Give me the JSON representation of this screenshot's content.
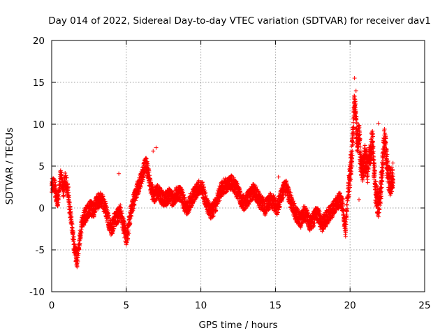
{
  "chart_data": {
    "type": "scatter",
    "title": "Day 014 of 2022, Sidereal Day-to-day VTEC variation (SDTVAR) for receiver dav1",
    "xlabel": "GPS time / hours",
    "ylabel": "SDTVAR / TECUs",
    "xlim": [
      0,
      25
    ],
    "ylim": [
      -10,
      20
    ],
    "xticks": [
      0,
      5,
      10,
      15,
      20,
      25
    ],
    "yticks": [
      -10,
      -5,
      0,
      5,
      10,
      15,
      20
    ],
    "xtick_labels": [
      "0",
      "5",
      "10",
      "15",
      "20",
      "25"
    ],
    "ytick_labels": [
      "-10",
      "-5",
      "0",
      "5",
      "10",
      "15",
      "20"
    ],
    "grid": true,
    "marker": "plus",
    "color": "#ff0000",
    "series": [
      {
        "name": "dav1",
        "trace": [
          [
            0.0,
            2.5
          ],
          [
            0.1,
            3.0
          ],
          [
            0.2,
            2.6
          ],
          [
            0.3,
            1.5
          ],
          [
            0.4,
            0.5
          ],
          [
            0.5,
            2.5
          ],
          [
            0.6,
            3.8
          ],
          [
            0.7,
            3.0
          ],
          [
            0.8,
            2.0
          ],
          [
            0.9,
            3.5
          ],
          [
            1.0,
            2.8
          ],
          [
            1.1,
            2.0
          ],
          [
            1.2,
            0.0
          ],
          [
            1.3,
            -1.5
          ],
          [
            1.4,
            -3.0
          ],
          [
            1.5,
            -4.5
          ],
          [
            1.6,
            -5.5
          ],
          [
            1.7,
            -6.2
          ],
          [
            1.8,
            -5.0
          ],
          [
            1.9,
            -3.5
          ],
          [
            2.0,
            -2.0
          ],
          [
            2.2,
            -1.0
          ],
          [
            2.4,
            -0.5
          ],
          [
            2.6,
            0.0
          ],
          [
            2.8,
            -0.3
          ],
          [
            3.0,
            0.5
          ],
          [
            3.2,
            1.0
          ],
          [
            3.4,
            0.8
          ],
          [
            3.6,
            0.0
          ],
          [
            3.8,
            -1.5
          ],
          [
            4.0,
            -2.5
          ],
          [
            4.2,
            -1.5
          ],
          [
            4.4,
            -1.0
          ],
          [
            4.6,
            -0.5
          ],
          [
            4.8,
            -2.0
          ],
          [
            5.0,
            -3.5
          ],
          [
            5.1,
            -3.0
          ],
          [
            5.3,
            -0.5
          ],
          [
            5.5,
            1.0
          ],
          [
            5.7,
            2.0
          ],
          [
            5.9,
            3.0
          ],
          [
            6.1,
            4.0
          ],
          [
            6.3,
            5.5
          ],
          [
            6.5,
            4.0
          ],
          [
            6.7,
            2.0
          ],
          [
            6.9,
            1.5
          ],
          [
            7.1,
            2.0
          ],
          [
            7.3,
            1.5
          ],
          [
            7.5,
            1.0
          ],
          [
            7.7,
            1.2
          ],
          [
            7.9,
            1.5
          ],
          [
            8.1,
            1.0
          ],
          [
            8.3,
            1.5
          ],
          [
            8.5,
            1.8
          ],
          [
            8.7,
            1.5
          ],
          [
            8.9,
            0.5
          ],
          [
            9.1,
            0.0
          ],
          [
            9.3,
            0.8
          ],
          [
            9.5,
            1.5
          ],
          [
            9.7,
            2.0
          ],
          [
            9.9,
            2.5
          ],
          [
            10.1,
            2.2
          ],
          [
            10.3,
            1.0
          ],
          [
            10.5,
            0.0
          ],
          [
            10.7,
            -0.5
          ],
          [
            10.9,
            0.0
          ],
          [
            11.1,
            1.0
          ],
          [
            11.3,
            2.0
          ],
          [
            11.5,
            2.5
          ],
          [
            11.7,
            2.8
          ],
          [
            11.9,
            3.0
          ],
          [
            12.1,
            3.0
          ],
          [
            12.3,
            2.5
          ],
          [
            12.5,
            1.8
          ],
          [
            12.7,
            1.0
          ],
          [
            12.9,
            0.5
          ],
          [
            13.1,
            1.0
          ],
          [
            13.3,
            1.5
          ],
          [
            13.5,
            2.0
          ],
          [
            13.7,
            1.8
          ],
          [
            13.9,
            1.0
          ],
          [
            14.1,
            0.5
          ],
          [
            14.3,
            0.0
          ],
          [
            14.5,
            0.5
          ],
          [
            14.7,
            1.0
          ],
          [
            14.9,
            0.5
          ],
          [
            15.1,
            0.0
          ],
          [
            15.3,
            1.0
          ],
          [
            15.5,
            2.0
          ],
          [
            15.7,
            2.5
          ],
          [
            15.9,
            1.5
          ],
          [
            16.1,
            0.5
          ],
          [
            16.3,
            -0.5
          ],
          [
            16.5,
            -1.0
          ],
          [
            16.7,
            -1.5
          ],
          [
            16.9,
            -0.5
          ],
          [
            17.1,
            -1.0
          ],
          [
            17.3,
            -1.8
          ],
          [
            17.5,
            -1.5
          ],
          [
            17.7,
            -0.5
          ],
          [
            17.9,
            -1.0
          ],
          [
            18.1,
            -2.0
          ],
          [
            18.3,
            -1.5
          ],
          [
            18.5,
            -1.0
          ],
          [
            18.7,
            -0.5
          ],
          [
            18.9,
            0.0
          ],
          [
            19.1,
            0.5
          ],
          [
            19.3,
            1.0
          ],
          [
            19.5,
            0.5
          ],
          [
            19.6,
            -1.5
          ],
          [
            19.7,
            -2.5
          ],
          [
            19.8,
            0.5
          ],
          [
            19.9,
            2.5
          ],
          [
            20.0,
            4.0
          ],
          [
            20.1,
            6.0
          ],
          [
            20.2,
            9.0
          ],
          [
            20.3,
            13.0
          ],
          [
            20.4,
            10.0
          ],
          [
            20.5,
            8.0
          ],
          [
            20.6,
            9.0
          ],
          [
            20.7,
            6.0
          ],
          [
            20.8,
            4.5
          ],
          [
            20.9,
            5.0
          ],
          [
            21.0,
            6.0
          ],
          [
            21.1,
            5.5
          ],
          [
            21.2,
            4.5
          ],
          [
            21.3,
            6.0
          ],
          [
            21.4,
            7.0
          ],
          [
            21.5,
            8.0
          ],
          [
            21.6,
            5.0
          ],
          [
            21.7,
            2.0
          ],
          [
            21.8,
            1.0
          ],
          [
            21.9,
            0.5
          ],
          [
            22.0,
            1.5
          ],
          [
            22.1,
            3.0
          ],
          [
            22.2,
            6.0
          ],
          [
            22.3,
            8.0
          ],
          [
            22.4,
            7.0
          ],
          [
            22.5,
            5.0
          ],
          [
            22.6,
            3.5
          ],
          [
            22.7,
            3.0
          ],
          [
            22.8,
            3.5
          ],
          [
            22.9,
            4.5
          ]
        ]
      }
    ],
    "highlights": [
      [
        4.5,
        4.1
      ],
      [
        20.3,
        15.5
      ],
      [
        20.4,
        14.0
      ],
      [
        20.3,
        11.2
      ],
      [
        20.6,
        1.0
      ],
      [
        21.9,
        10.1
      ],
      [
        19.7,
        -3.4
      ],
      [
        7.0,
        7.2
      ],
      [
        6.8,
        6.8
      ],
      [
        5.0,
        -4.1
      ],
      [
        1.7,
        -6.3
      ],
      [
        15.2,
        3.7
      ]
    ]
  }
}
